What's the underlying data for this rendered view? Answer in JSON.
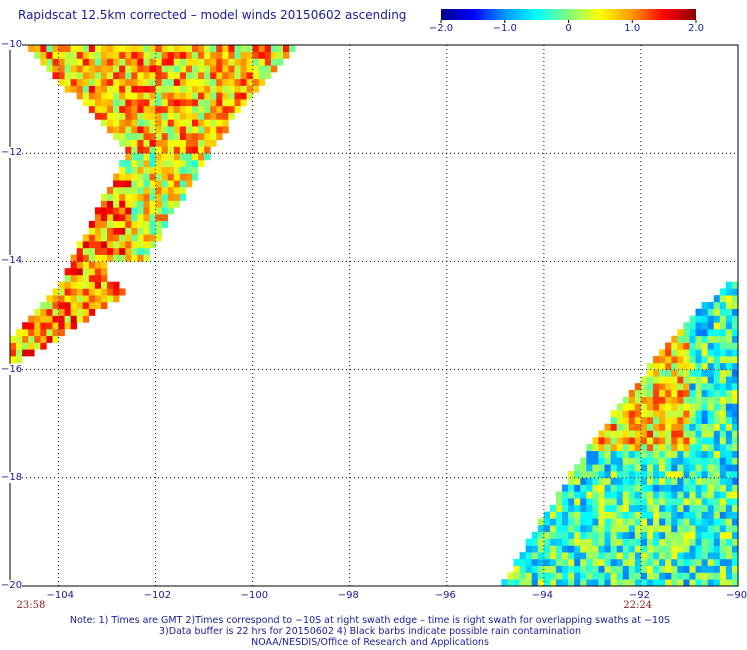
{
  "title": "Rapidscat 12.5km corrected – model winds 20150602 ascending",
  "colorbar": {
    "min": -2.0,
    "max": 2.0,
    "tick_labels": [
      "−2.0",
      "−1.0",
      "0",
      "1.0",
      "2.0"
    ],
    "tick_values": [
      -2.0,
      -1.0,
      0,
      1.0,
      2.0
    ],
    "colors": [
      "#00008b",
      "#0000ff",
      "#0096ff",
      "#00ffff",
      "#7fff7f",
      "#ffff00",
      "#ff9600",
      "#ff0000",
      "#8b0000"
    ]
  },
  "map": {
    "lon_range": [
      -105,
      -90
    ],
    "lat_range": [
      -20,
      -10
    ],
    "lon_ticks": [
      -104,
      -102,
      -100,
      -98,
      -96,
      -94,
      -92,
      -90
    ],
    "lon_tick_labels": [
      "−104",
      "−102",
      "−100",
      "−98",
      "−96",
      "−94",
      "−92",
      "−90"
    ],
    "lat_ticks": [
      -10,
      -12,
      -14,
      -16,
      -18,
      -20
    ],
    "lat_tick_labels": [
      "−10",
      "−12",
      "−14",
      "−16",
      "−18",
      "−20"
    ],
    "swath_times": [
      {
        "label": "23:58",
        "lon": -104.7
      },
      {
        "label": "22:24",
        "lon": -92.2
      }
    ]
  },
  "notes": {
    "line1": "Note: 1) Times are GMT 2)Times correspond to −10S at right swath edge – time is right swath for overlapping swaths at −10S",
    "line2": "3)Data buffer is 22 hrs for 20150602 4) Black barbs indicate possible rain contamination",
    "line3": "NOAA/NESDIS/Office of Research and Applications"
  }
}
